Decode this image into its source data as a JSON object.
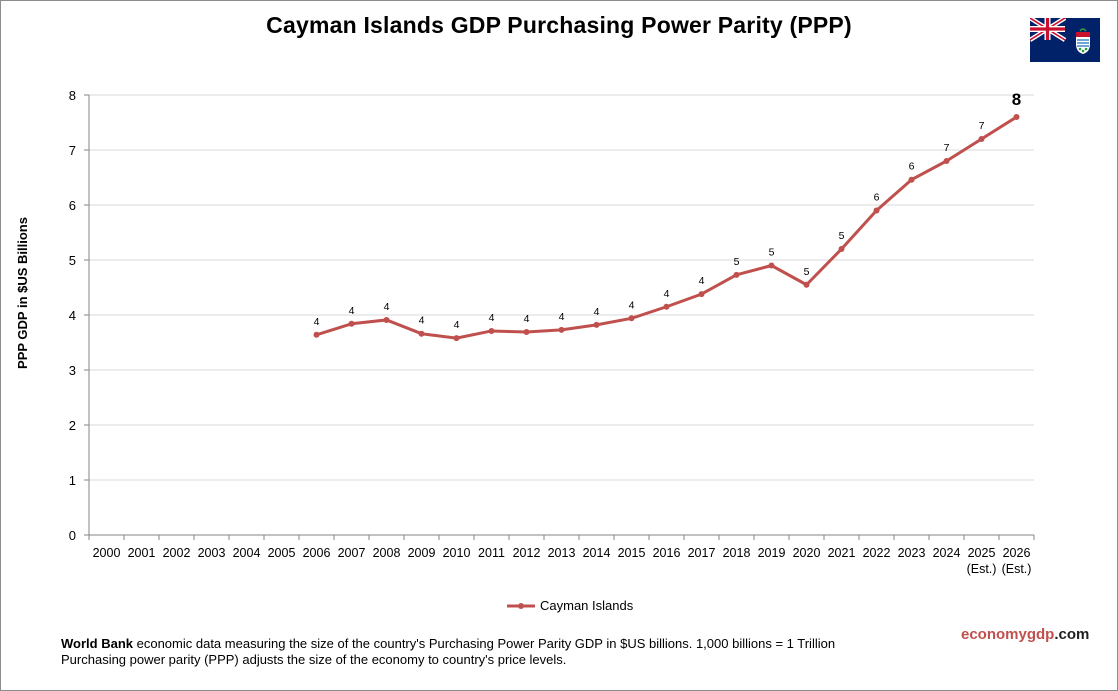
{
  "chart_data": {
    "type": "line",
    "title": "Cayman Islands GDP Purchasing Power Parity (PPP)",
    "ylabel": "PPP GDP in $US Billions",
    "xlabel": "",
    "categories": [
      "2000",
      "2001",
      "2002",
      "2003",
      "2004",
      "2005",
      "2006",
      "2007",
      "2008",
      "2009",
      "2010",
      "2011",
      "2012",
      "2013",
      "2014",
      "2015",
      "2016",
      "2017",
      "2018",
      "2019",
      "2020",
      "2021",
      "2022",
      "2023",
      "2024",
      "2025",
      "2026"
    ],
    "category_sublabels": {
      "2025": "(Est.)",
      "2026": "(Est.)"
    },
    "y_ticks": [
      "0",
      "1",
      "2",
      "3",
      "4",
      "5",
      "6",
      "7",
      "8"
    ],
    "ylim": [
      0,
      8
    ],
    "grid": "horizontal",
    "legend_position": "bottom",
    "series": [
      {
        "name": "Cayman Islands",
        "color": "#c0504d",
        "values": [
          null,
          null,
          null,
          null,
          null,
          null,
          3.64,
          3.84,
          3.91,
          3.66,
          3.58,
          3.71,
          3.69,
          3.73,
          3.82,
          3.94,
          4.15,
          4.38,
          4.73,
          4.9,
          4.55,
          5.2,
          5.9,
          6.46,
          6.8,
          7.2,
          7.6
        ],
        "data_labels": [
          null,
          null,
          null,
          null,
          null,
          null,
          "4",
          "4",
          "4",
          "4",
          "4",
          "4",
          "4",
          "4",
          "4",
          "4",
          "4",
          "4",
          "5",
          "5",
          "5",
          "5",
          "6",
          "6",
          "7",
          "7",
          "8"
        ]
      }
    ]
  },
  "footer": {
    "source_bold": "World Bank",
    "line1_rest": " economic data measuring the size of the country's Purchasing Power Parity GDP in $US billions. 1,000 billions = 1 Trillion",
    "line2": "Purchasing power parity (PPP) adjusts the size of the economy to country's price levels."
  },
  "brand": {
    "part1": "economy",
    "part2": "gdp",
    "part3": ".com"
  },
  "flag_icon": "cayman-islands-flag-icon"
}
